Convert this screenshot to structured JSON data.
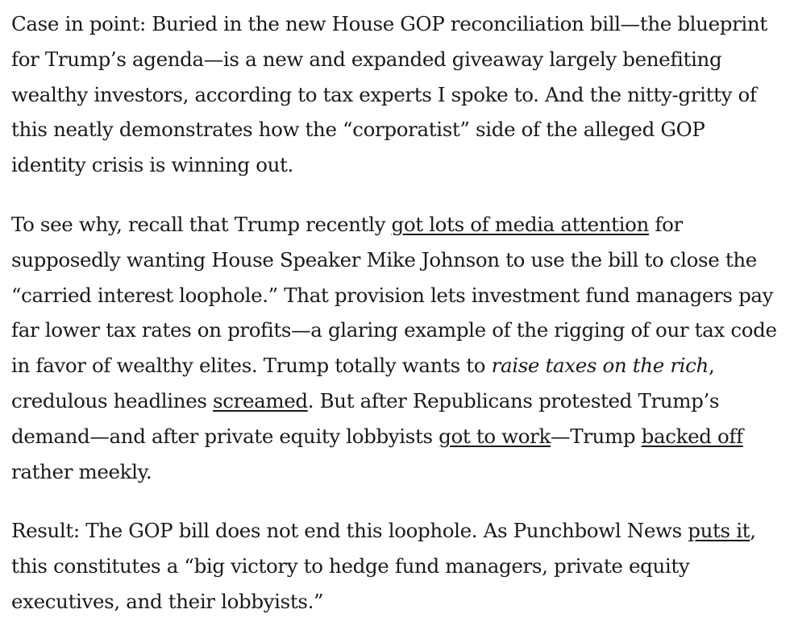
{
  "article": {
    "p1": {
      "text": "Case in point: Buried in the new House GOP reconciliation bill—the blueprint for Trump’s agenda—is a new and expanded giveaway largely benefiting wealthy investors, according to tax experts I spoke to. And the nitty-gritty of this neatly demonstrates how the “corporatist” side of the alleged GOP identity crisis is winning out."
    },
    "p2": {
      "t1": "To see why, recall that Trump recently ",
      "link_media_attention": "got lots of media attention",
      "t2": " for supposedly wanting House Speaker Mike Johnson to use the bill to close the “carried interest loophole.” That provision lets investment fund managers pay far lower tax rates on profits—a glaring example of the rigging of our tax code in favor of wealthy elites. Trump totally wants to ",
      "em_raise_taxes": "raise taxes on the rich",
      "t3": ", credulous headlines ",
      "link_screamed": "screamed",
      "t4": ". But after Republicans protested Trump’s demand—and after private equity lobbyists ",
      "link_got_to_work": "got to work",
      "t5": "—Trump ",
      "link_backed_off": "backed off",
      "t6": " rather meekly."
    },
    "p3": {
      "t1": "Result: The GOP bill does not end this loophole. As Punchbowl News ",
      "link_puts_it": "puts it",
      "t2": ", this constitutes a “big victory to hedge fund managers, private equity executives, and their lobbyists.”"
    }
  }
}
